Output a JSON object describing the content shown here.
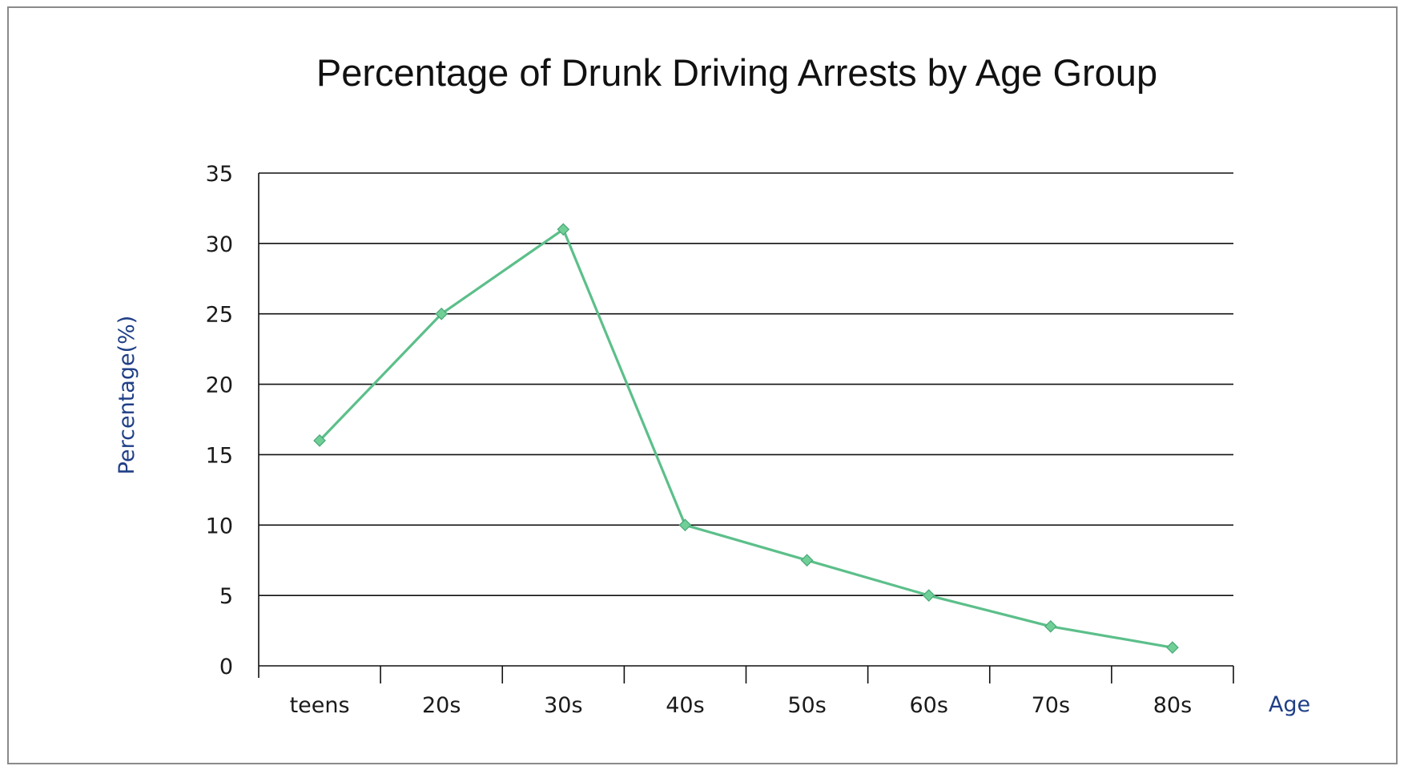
{
  "chart_data": {
    "type": "line",
    "title": "Percentage of Drunk Driving Arrests by Age Group",
    "xlabel": "Age",
    "ylabel": "Percentage(%)",
    "categories": [
      "teens",
      "20s",
      "30s",
      "40s",
      "50s",
      "60s",
      "70s",
      "80s"
    ],
    "series": [
      {
        "values": [
          16,
          25,
          31,
          10,
          7.5,
          5,
          2.8,
          1.3
        ]
      }
    ],
    "ylim": [
      0,
      35
    ],
    "yticks": [
      "0",
      "5",
      "10",
      "15",
      "20",
      "25",
      "30",
      "35"
    ],
    "grid": true,
    "marker": "diamond",
    "colors": {
      "line": "#5cbf8a",
      "marker": "#6fcf97",
      "axis_label": "#1f3f86",
      "grid": "#111111"
    }
  }
}
